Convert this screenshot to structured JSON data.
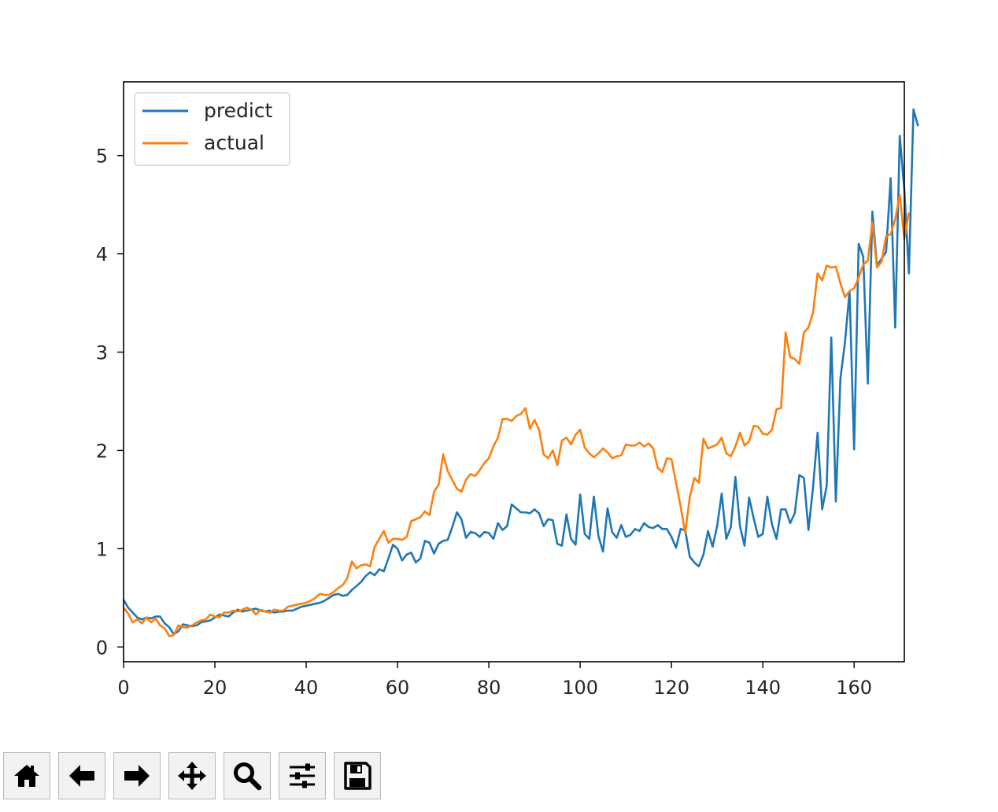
{
  "chart_data": {
    "type": "line",
    "xlim": [
      0,
      171
    ],
    "ylim": [
      -0.15,
      5.75
    ],
    "xticks": [
      0,
      20,
      40,
      60,
      80,
      100,
      120,
      140,
      160
    ],
    "yticks": [
      0,
      1,
      2,
      3,
      4,
      5
    ],
    "legend_position": "top-left",
    "grid": false,
    "series": [
      {
        "name": "predict",
        "color": "#1f77b4",
        "values": [
          0.48,
          0.4,
          0.35,
          0.3,
          0.28,
          0.3,
          0.29,
          0.31,
          0.31,
          0.24,
          0.2,
          0.13,
          0.16,
          0.23,
          0.22,
          0.21,
          0.22,
          0.25,
          0.26,
          0.27,
          0.3,
          0.33,
          0.32,
          0.31,
          0.35,
          0.38,
          0.36,
          0.37,
          0.38,
          0.39,
          0.37,
          0.36,
          0.37,
          0.35,
          0.36,
          0.36,
          0.37,
          0.37,
          0.39,
          0.41,
          0.42,
          0.43,
          0.44,
          0.45,
          0.47,
          0.5,
          0.53,
          0.54,
          0.52,
          0.53,
          0.58,
          0.62,
          0.66,
          0.72,
          0.76,
          0.73,
          0.79,
          0.77,
          0.9,
          1.04,
          1.0,
          0.88,
          0.94,
          0.96,
          0.86,
          0.9,
          1.08,
          1.06,
          0.95,
          1.05,
          1.08,
          1.09,
          1.22,
          1.37,
          1.3,
          1.11,
          1.17,
          1.16,
          1.12,
          1.17,
          1.16,
          1.1,
          1.26,
          1.19,
          1.23,
          1.45,
          1.41,
          1.37,
          1.37,
          1.36,
          1.4,
          1.36,
          1.23,
          1.3,
          1.29,
          1.05,
          1.03,
          1.35,
          1.1,
          1.04,
          1.55,
          1.15,
          1.1,
          1.53,
          1.13,
          0.97,
          1.41,
          1.17,
          1.11,
          1.24,
          1.12,
          1.14,
          1.2,
          1.18,
          1.26,
          1.22,
          1.21,
          1.24,
          1.2,
          1.2,
          1.12,
          1.01,
          1.2,
          1.19,
          0.92,
          0.86,
          0.82,
          0.94,
          1.18,
          1.02,
          1.23,
          1.56,
          1.1,
          1.22,
          1.73,
          1.23,
          1.03,
          1.52,
          1.31,
          1.12,
          1.15,
          1.53,
          1.25,
          1.1,
          1.4,
          1.4,
          1.26,
          1.36,
          1.75,
          1.72,
          1.19,
          1.62,
          2.18,
          1.4,
          1.64,
          3.15,
          1.48,
          2.73,
          3.1,
          3.62,
          2.01,
          4.1,
          3.97,
          2.68,
          4.43,
          3.88,
          3.95,
          4.02,
          4.77,
          3.25,
          5.2,
          4.65,
          3.8,
          5.47,
          5.3
        ]
      },
      {
        "name": "actual",
        "color": "#ff7f0e",
        "values": [
          0.4,
          0.34,
          0.25,
          0.28,
          0.24,
          0.3,
          0.25,
          0.29,
          0.22,
          0.19,
          0.11,
          0.12,
          0.22,
          0.2,
          0.2,
          0.22,
          0.25,
          0.27,
          0.28,
          0.33,
          0.31,
          0.3,
          0.35,
          0.35,
          0.37,
          0.36,
          0.38,
          0.4,
          0.38,
          0.33,
          0.38,
          0.36,
          0.35,
          0.38,
          0.37,
          0.37,
          0.41,
          0.42,
          0.43,
          0.44,
          0.45,
          0.47,
          0.5,
          0.54,
          0.53,
          0.53,
          0.56,
          0.6,
          0.63,
          0.7,
          0.87,
          0.8,
          0.83,
          0.84,
          0.82,
          1.02,
          1.1,
          1.18,
          1.06,
          1.1,
          1.1,
          1.09,
          1.12,
          1.28,
          1.3,
          1.32,
          1.38,
          1.34,
          1.58,
          1.65,
          1.96,
          1.79,
          1.7,
          1.61,
          1.58,
          1.7,
          1.76,
          1.74,
          1.8,
          1.87,
          1.92,
          2.04,
          2.13,
          2.32,
          2.32,
          2.3,
          2.35,
          2.37,
          2.43,
          2.22,
          2.31,
          2.21,
          1.96,
          1.92,
          2.0,
          1.85,
          2.1,
          2.13,
          2.06,
          2.16,
          2.21,
          2.03,
          1.97,
          1.93,
          1.97,
          2.02,
          1.98,
          1.92,
          1.94,
          1.95,
          2.06,
          2.05,
          2.05,
          2.08,
          2.04,
          2.07,
          2.02,
          1.82,
          1.78,
          1.92,
          1.91,
          1.67,
          1.43,
          1.16,
          1.52,
          1.72,
          1.67,
          2.12,
          2.02,
          2.04,
          2.06,
          2.13,
          1.97,
          1.94,
          2.04,
          2.18,
          2.05,
          2.09,
          2.25,
          2.24,
          2.17,
          2.16,
          2.21,
          2.42,
          2.43,
          3.2,
          2.95,
          2.93,
          2.88,
          3.2,
          3.25,
          3.4,
          3.8,
          3.73,
          3.88,
          3.86,
          3.87,
          3.7,
          3.56,
          3.62,
          3.65,
          3.76,
          3.89,
          3.93,
          4.32,
          3.86,
          3.92,
          4.18,
          4.2,
          4.35,
          4.6,
          4.15,
          4.42
        ]
      }
    ]
  },
  "toolbar": {
    "buttons": [
      {
        "name": "home-button",
        "icon": "home-icon"
      },
      {
        "name": "back-button",
        "icon": "arrow-left-icon"
      },
      {
        "name": "forward-button",
        "icon": "arrow-right-icon"
      },
      {
        "name": "pan-button",
        "icon": "move-icon"
      },
      {
        "name": "zoom-button",
        "icon": "magnifier-icon"
      },
      {
        "name": "configure-subplots-button",
        "icon": "sliders-icon"
      },
      {
        "name": "save-button",
        "icon": "floppy-disk-icon"
      }
    ]
  }
}
